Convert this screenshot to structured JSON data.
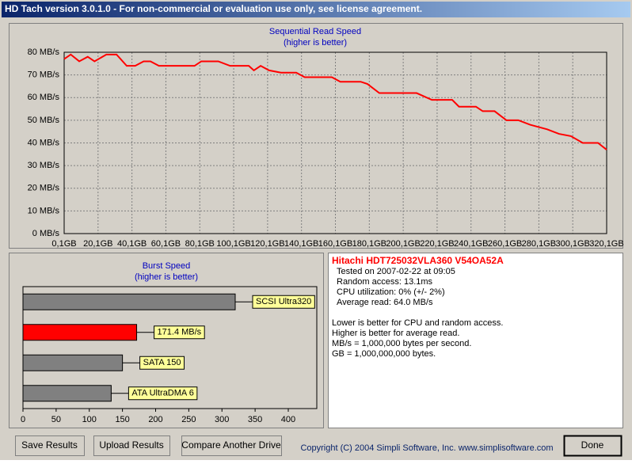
{
  "window": {
    "title": "HD Tach version 3.0.1.0  - For non-commercial or evaluation use only, see license agreement."
  },
  "chart_data": [
    {
      "type": "line",
      "title": "Sequential Read Speed",
      "subtitle": "(higher is better)",
      "color": "#ff0000",
      "grid": true,
      "x": [
        0.1,
        4,
        9,
        14,
        18,
        25,
        31,
        37,
        42,
        47,
        51,
        56,
        77,
        81,
        91,
        98,
        109,
        112,
        116,
        121,
        128,
        137,
        142,
        158,
        163,
        175,
        179,
        186,
        208,
        217,
        229,
        233,
        243,
        247,
        254,
        261,
        268,
        275,
        285,
        292,
        299,
        306,
        315,
        320.1
      ],
      "values": [
        77,
        79,
        76,
        78,
        76,
        79,
        79,
        74,
        74,
        76,
        76,
        74,
        74,
        76,
        76,
        74,
        74,
        72,
        74,
        72,
        71,
        71,
        69,
        69,
        67,
        67,
        66,
        62,
        62,
        59,
        59,
        56,
        56,
        54,
        54,
        50,
        50,
        48,
        46,
        44,
        43,
        40,
        40,
        37
      ],
      "xlim": [
        0.1,
        320.1
      ],
      "xticks": [
        {
          "value": 0.1,
          "label": "0,1GB"
        },
        {
          "value": 20.1,
          "label": "20,1GB"
        },
        {
          "value": 40.1,
          "label": "40,1GB"
        },
        {
          "value": 60.1,
          "label": "60,1GB"
        },
        {
          "value": 80.1,
          "label": "80,1GB"
        },
        {
          "value": 100.1,
          "label": "100,1GB"
        },
        {
          "value": 120.1,
          "label": "120,1GB"
        },
        {
          "value": 140.1,
          "label": "140,1GB"
        },
        {
          "value": 160.1,
          "label": "160,1GB"
        },
        {
          "value": 180.1,
          "label": "180,1GB"
        },
        {
          "value": 200.1,
          "label": "200,1GB"
        },
        {
          "value": 220.1,
          "label": "220,1GB"
        },
        {
          "value": 240.1,
          "label": "240,1GB"
        },
        {
          "value": 260.1,
          "label": "260,1GB"
        },
        {
          "value": 280.1,
          "label": "280,1GB"
        },
        {
          "value": 300.1,
          "label": "300,1GB"
        },
        {
          "value": 320.1,
          "label": "320,1GB"
        }
      ],
      "ylim": [
        0,
        80
      ],
      "yticks": [
        {
          "value": 0,
          "label": "0 MB/s"
        },
        {
          "value": 10,
          "label": "10 MB/s"
        },
        {
          "value": 20,
          "label": "20 MB/s"
        },
        {
          "value": 30,
          "label": "30 MB/s"
        },
        {
          "value": 40,
          "label": "40 MB/s"
        },
        {
          "value": 50,
          "label": "50 MB/s"
        },
        {
          "value": 60,
          "label": "60 MB/s"
        },
        {
          "value": 70,
          "label": "70 MB/s"
        },
        {
          "value": 80,
          "label": "80 MB/s"
        }
      ]
    },
    {
      "type": "hbar",
      "title": "Burst Speed",
      "subtitle": "(higher is better)",
      "categories": [
        "SCSI Ultra320",
        "171.4 MB/s",
        "SATA 150",
        "ATA UltraDMA 6"
      ],
      "values": [
        320,
        171.4,
        150,
        133
      ],
      "colors": [
        "#808080",
        "#ff0000",
        "#808080",
        "#808080"
      ],
      "xlim": [
        0,
        443
      ],
      "xticks": [
        0,
        50,
        100,
        150,
        200,
        250,
        300,
        350,
        400
      ]
    }
  ],
  "info": {
    "drive": "Hitachi HDT725032VLA360 V54OA52A",
    "lines": [
      "Tested on 2007-02-22 at 09:05",
      "Random access: 13.1ms",
      "CPU utilization: 0% (+/- 2%)",
      "Average read: 64.0 MB/s"
    ],
    "notes": [
      "Lower is better for CPU and random access.",
      "Higher is better for average read.",
      "MB/s = 1,000,000 bytes per second.",
      "GB = 1,000,000,000 bytes."
    ]
  },
  "buttons": [
    "Save Results",
    "Upload Results",
    "Compare Another Drive",
    "Done"
  ],
  "copyright": "Copyright (C) 2004 Simpli Software, Inc. www.simplisoftware.com"
}
